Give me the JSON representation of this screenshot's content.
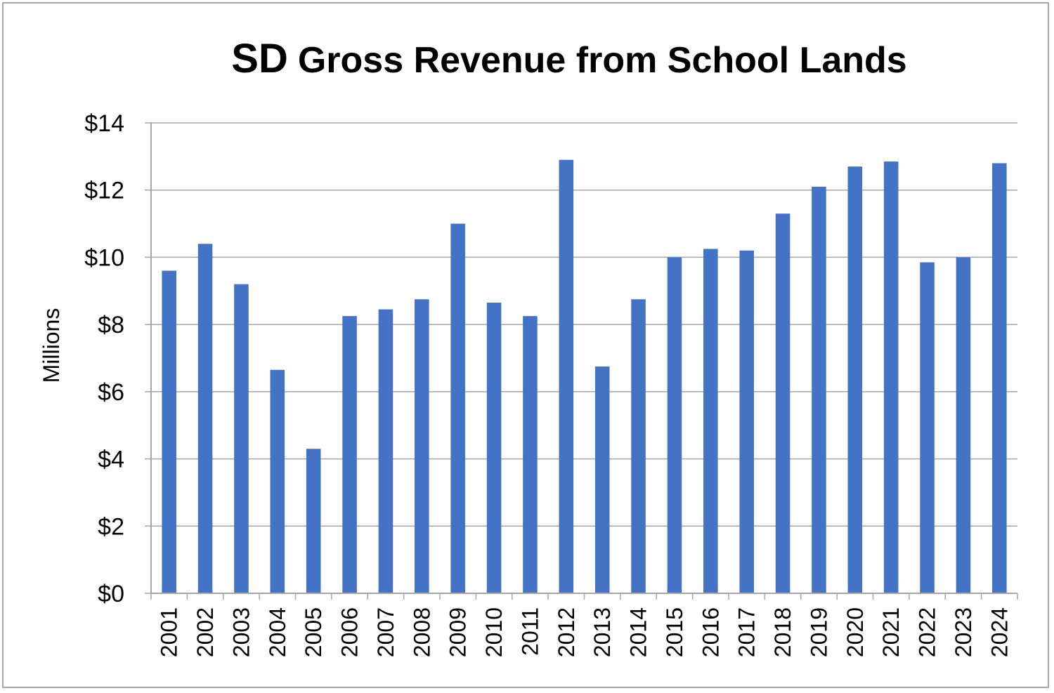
{
  "chart_data": {
    "type": "bar",
    "title_prefix": "SD",
    "title_rest": "Gross Revenue from School Lands",
    "ylabel": "Millions",
    "xlabel": "",
    "ylim": [
      0,
      14
    ],
    "yticks": [
      0,
      2,
      4,
      6,
      8,
      10,
      12,
      14
    ],
    "ytick_labels": [
      "$0",
      "$2",
      "$4",
      "$6",
      "$8",
      "$10",
      "$12",
      "$14"
    ],
    "grid": true,
    "legend": "none",
    "bar_color": "#4472c4",
    "categories": [
      "2001",
      "2002",
      "2003",
      "2004",
      "2005",
      "2006",
      "2007",
      "2008",
      "2009",
      "2010",
      "2011",
      "2012",
      "2013",
      "2014",
      "2015",
      "2016",
      "2017",
      "2018",
      "2019",
      "2020",
      "2021",
      "2022",
      "2023",
      "2024"
    ],
    "values": [
      9.6,
      10.4,
      9.2,
      6.65,
      4.3,
      8.25,
      8.45,
      8.75,
      11.0,
      8.65,
      8.25,
      12.9,
      6.75,
      8.75,
      10.0,
      10.25,
      10.2,
      11.3,
      12.1,
      12.7,
      12.85,
      9.85,
      10.0,
      12.8
    ]
  }
}
